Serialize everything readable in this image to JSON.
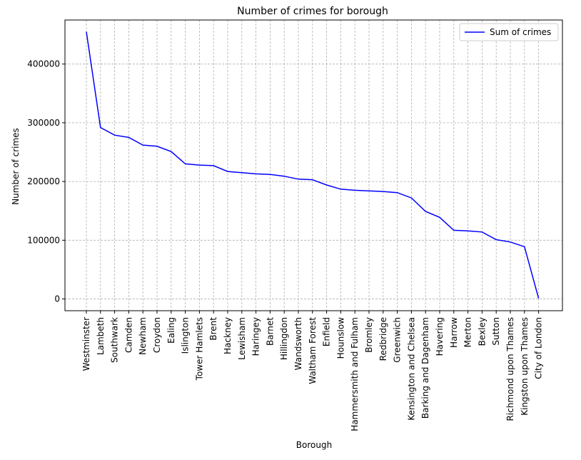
{
  "chart_data": {
    "type": "line",
    "title": "Number of crimes for borough",
    "xlabel": "Borough",
    "ylabel": "Number of crimes",
    "ylim": [
      -20000,
      475000
    ],
    "yticks": [
      0,
      100000,
      200000,
      300000,
      400000
    ],
    "ytick_labels": [
      "0",
      "100000",
      "200000",
      "300000",
      "400000"
    ],
    "grid": true,
    "grid_style": "dashed",
    "legend_position": "top-right",
    "categories": [
      "Westminster",
      "Lambeth",
      "Southwark",
      "Camden",
      "Newham",
      "Croydon",
      "Ealing",
      "Islington",
      "Tower Hamlets",
      "Brent",
      "Hackney",
      "Lewisham",
      "Haringey",
      "Barnet",
      "Hillingdon",
      "Wandsworth",
      "Waltham Forest",
      "Enfield",
      "Hounslow",
      "Hammersmith and Fulham",
      "Bromley",
      "Redbridge",
      "Greenwich",
      "Kensington and Chelsea",
      "Barking and Dagenham",
      "Havering",
      "Harrow",
      "Merton",
      "Bexley",
      "Sutton",
      "Richmond upon Thames",
      "Kingston upon Thames",
      "City of London"
    ],
    "series": [
      {
        "name": "Sum of crimes",
        "color": "#0000ff",
        "values": [
          455000,
          292000,
          279000,
          275000,
          262000,
          260000,
          251000,
          230000,
          228000,
          227000,
          217000,
          215000,
          213000,
          212000,
          209000,
          204000,
          203000,
          194000,
          187000,
          185000,
          184000,
          183000,
          181000,
          172000,
          149000,
          139000,
          117000,
          116000,
          114000,
          101000,
          97000,
          89000,
          1000
        ]
      }
    ]
  }
}
